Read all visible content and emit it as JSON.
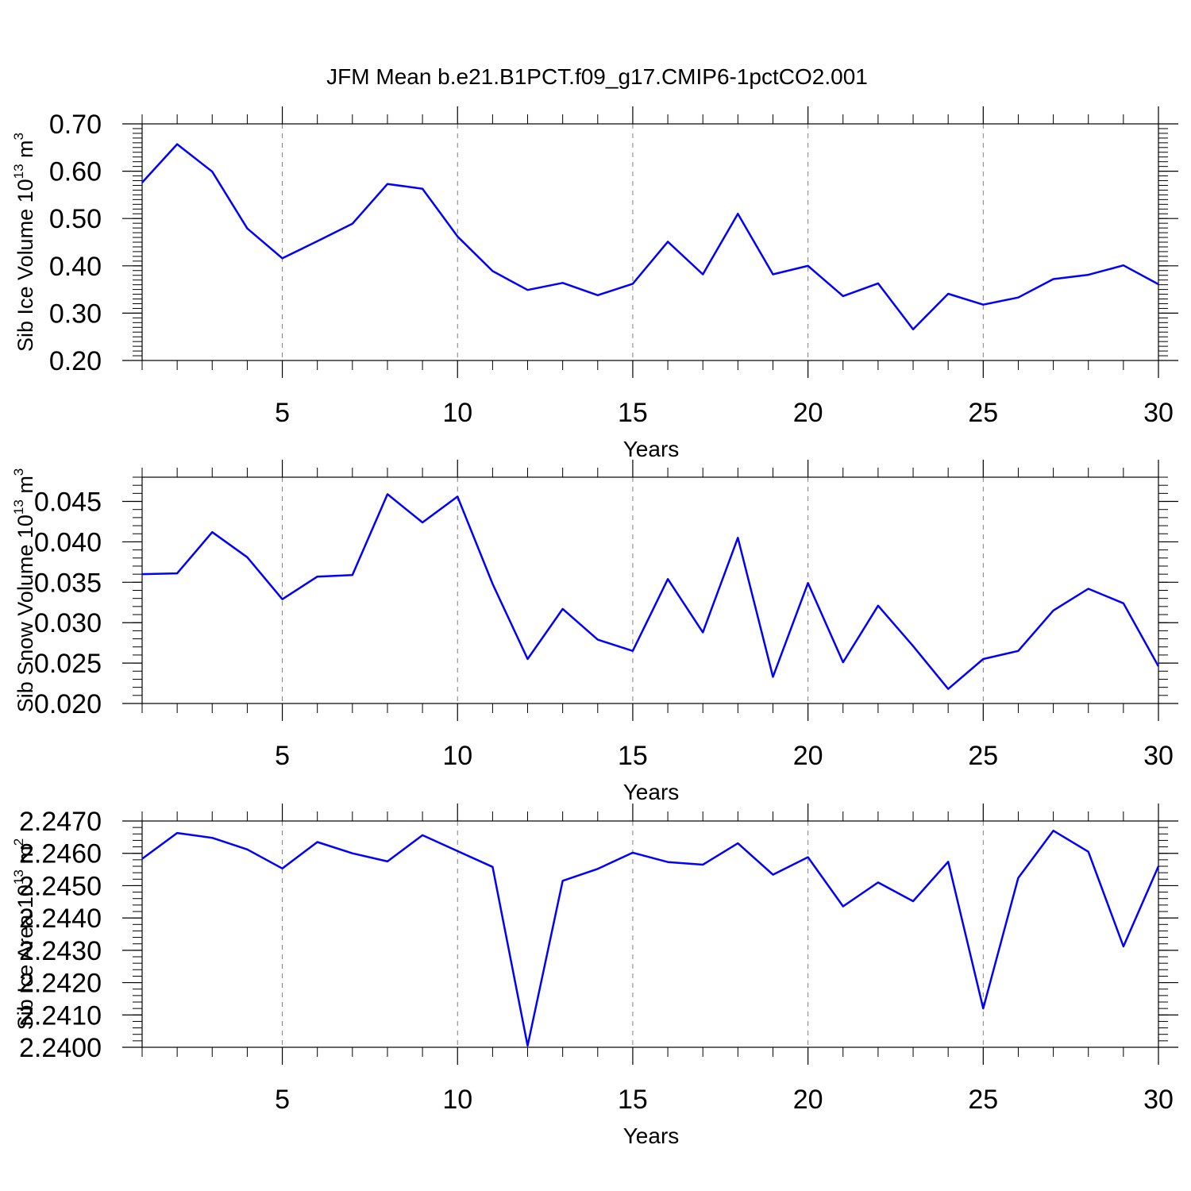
{
  "title": "JFM Mean b.e21.B1PCT.f09_g17.CMIP6-1pctCO2.001",
  "line_color": "#0000ff",
  "grid": "vertical dashed at major x ticks",
  "chart_data": [
    {
      "type": "line",
      "ylabel": "Sib Ice Volume 10",
      "ylabel_exp": "13",
      "ylabel_unit": " m",
      "ylabel_unit_exp": "3",
      "xlabel": "Years",
      "xlim": [
        1,
        30
      ],
      "ylim": [
        0.2,
        0.7
      ],
      "xticks": [
        5,
        10,
        15,
        20,
        25,
        30
      ],
      "xtick_labels": [
        "5",
        "10",
        "15",
        "20",
        "25",
        "30"
      ],
      "yticks": [
        0.2,
        0.3,
        0.4,
        0.5,
        0.6,
        0.7
      ],
      "ytick_labels": [
        "0.20",
        "0.30",
        "0.40",
        "0.50",
        "0.60",
        "0.70"
      ],
      "x": [
        1,
        2,
        3,
        4,
        5,
        6,
        7,
        8,
        9,
        10,
        11,
        12,
        13,
        14,
        15,
        16,
        17,
        18,
        19,
        20,
        21,
        22,
        23,
        24,
        25,
        26,
        27,
        28,
        29,
        30
      ],
      "y": [
        0.576,
        0.657,
        0.599,
        0.479,
        0.416,
        0.452,
        0.489,
        0.573,
        0.563,
        0.462,
        0.389,
        0.349,
        0.364,
        0.338,
        0.362,
        0.451,
        0.382,
        0.51,
        0.382,
        0.4,
        0.336,
        0.363,
        0.266,
        0.341,
        0.318,
        0.333,
        0.372,
        0.381,
        0.401,
        0.361
      ]
    },
    {
      "type": "line",
      "ylabel": "Sib Snow Volume 10",
      "ylabel_exp": "13",
      "ylabel_unit": " m",
      "ylabel_unit_exp": "3",
      "xlabel": "Years",
      "xlim": [
        1,
        30
      ],
      "ylim": [
        0.02,
        0.048
      ],
      "xticks": [
        5,
        10,
        15,
        20,
        25,
        30
      ],
      "xtick_labels": [
        "5",
        "10",
        "15",
        "20",
        "25",
        "30"
      ],
      "yticks": [
        0.02,
        0.025,
        0.03,
        0.035,
        0.04,
        0.045
      ],
      "ytick_labels": [
        "0.020",
        "0.025",
        "0.030",
        "0.035",
        "0.040",
        "0.045"
      ],
      "x": [
        1,
        2,
        3,
        4,
        5,
        6,
        7,
        8,
        9,
        10,
        11,
        12,
        13,
        14,
        15,
        16,
        17,
        18,
        19,
        20,
        21,
        22,
        23,
        24,
        25,
        26,
        27,
        28,
        29,
        30
      ],
      "y": [
        0.036,
        0.0361,
        0.0412,
        0.0381,
        0.0329,
        0.0357,
        0.0359,
        0.0459,
        0.0424,
        0.0456,
        0.0348,
        0.0255,
        0.0317,
        0.0279,
        0.0265,
        0.0354,
        0.0288,
        0.0405,
        0.0233,
        0.0349,
        0.0251,
        0.0321,
        0.0271,
        0.0218,
        0.0255,
        0.0265,
        0.0315,
        0.0342,
        0.0324,
        0.0246
      ]
    },
    {
      "type": "line",
      "ylabel": "Sib Ice Area 10",
      "ylabel_exp": "13",
      "ylabel_unit": " m",
      "ylabel_unit_exp": "2",
      "xlabel": "Years",
      "xlim": [
        1,
        30
      ],
      "ylim": [
        2.24,
        2.247
      ],
      "xticks": [
        5,
        10,
        15,
        20,
        25,
        30
      ],
      "xtick_labels": [
        "5",
        "10",
        "15",
        "20",
        "25",
        "30"
      ],
      "yticks": [
        2.24,
        2.241,
        2.242,
        2.243,
        2.244,
        2.245,
        2.246,
        2.247
      ],
      "ytick_labels": [
        "2.2400",
        "2.2410",
        "2.2420",
        "2.2430",
        "2.2440",
        "2.2450",
        "2.2460",
        "2.2470"
      ],
      "x": [
        1,
        2,
        3,
        4,
        5,
        6,
        7,
        8,
        9,
        10,
        11,
        12,
        13,
        14,
        15,
        16,
        17,
        18,
        19,
        20,
        21,
        22,
        23,
        24,
        25,
        26,
        27,
        28,
        29,
        30
      ],
      "y": [
        2.24583,
        2.24663,
        2.24648,
        2.24612,
        2.24553,
        2.24635,
        2.246,
        2.24575,
        2.24656,
        2.24607,
        2.24558,
        2.24005,
        2.24515,
        2.24552,
        2.24602,
        2.24573,
        2.24565,
        2.24631,
        2.24534,
        2.24588,
        2.24436,
        2.2451,
        2.24452,
        2.24574,
        2.2412,
        2.24524,
        2.2467,
        2.24605,
        2.24312,
        2.2456
      ]
    }
  ]
}
